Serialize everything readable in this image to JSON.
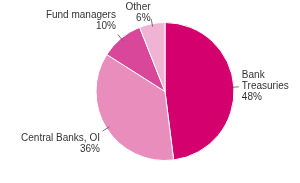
{
  "chart_data": {
    "type": "pie",
    "categories": [
      "Bank Treasuries",
      "Central Banks, OI",
      "Fund managers",
      "Other"
    ],
    "values": [
      48,
      36,
      10,
      6
    ],
    "value_labels": [
      "48%",
      "36%",
      "10%",
      "6%"
    ],
    "colors": [
      "#d4006e",
      "#e98dbd",
      "#d8479a",
      "#f0b3d3"
    ],
    "data_labels": true,
    "legend": false
  }
}
